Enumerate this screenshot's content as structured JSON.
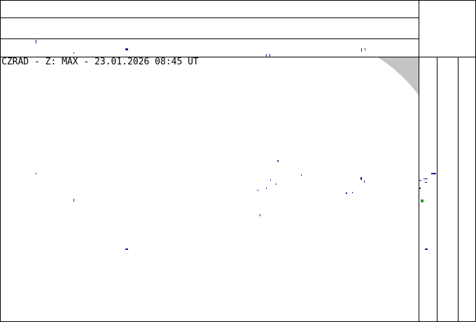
{
  "map": {
    "title": "CZRAD - Z: MAX - 23.01.2026 08:45 UT",
    "colors": {
      "echo": "#3a0a9a",
      "echo_light": "#2020c0",
      "echo_green": "#10a010",
      "out_of_range": "#c4c4c4"
    }
  }
}
